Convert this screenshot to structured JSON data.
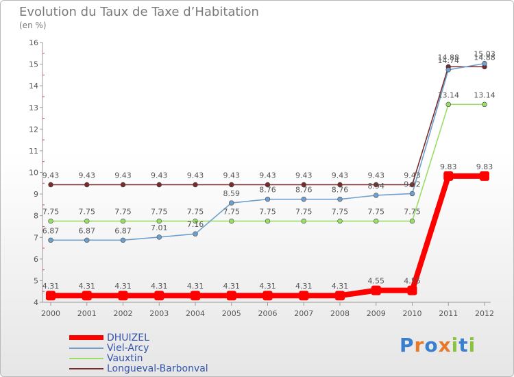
{
  "colors": {
    "DHUIZEL": "#ff0000",
    "Viel-Arcy": "#6fa0cc",
    "Vauxtin": "#99dd66",
    "Longueval-Barbonval": "#7a2a2a"
  },
  "chart_data": {
    "type": "line",
    "title": "Evolution du Taux de Taxe d’Habitation",
    "subtitle": "(en %)",
    "xlabel": "",
    "ylabel": "",
    "x": [
      "2000",
      "2001",
      "2002",
      "2003",
      "2004",
      "2005",
      "2006",
      "2007",
      "2008",
      "2009",
      "2010",
      "2011",
      "2012"
    ],
    "ylim": [
      4,
      16
    ],
    "yticks": [
      "4",
      "5",
      "6",
      "7",
      "8",
      "9",
      "10",
      "11",
      "12",
      "13",
      "14",
      "15",
      "16"
    ],
    "grid": false,
    "legend_position": "bottom-left",
    "series": [
      {
        "name": "DHUIZEL",
        "values": [
          4.31,
          4.31,
          4.31,
          4.31,
          4.31,
          4.31,
          4.31,
          4.31,
          4.31,
          4.55,
          4.55,
          9.83,
          9.83
        ],
        "labels": [
          "4.31",
          "4.31",
          "4.31",
          "4.31",
          "4.31",
          "4.31",
          "4.31",
          "4.31",
          "4.31",
          "4.55",
          "4.55",
          "9.83",
          "9.83"
        ]
      },
      {
        "name": "Viel-Arcy",
        "values": [
          6.87,
          6.87,
          6.87,
          7.01,
          7.16,
          8.59,
          8.76,
          8.76,
          8.76,
          8.94,
          9.02,
          14.74,
          15.03
        ],
        "labels": [
          "6.87",
          "6.87",
          "6.87",
          "7.01",
          "7.16",
          "8.59",
          "8.76",
          "8.76",
          "8.76",
          "8.94",
          "9.02",
          "14.74",
          "15.03"
        ]
      },
      {
        "name": "Vauxtin",
        "values": [
          7.75,
          7.75,
          7.75,
          7.75,
          7.75,
          7.75,
          7.75,
          7.75,
          7.75,
          7.75,
          7.75,
          13.14,
          13.14
        ],
        "labels": [
          "7.75",
          "7.75",
          "7.75",
          "7.75",
          "7.75",
          "7.75",
          "7.75",
          "7.75",
          "7.75",
          "7.75",
          "7.75",
          "13.14",
          "13.14"
        ]
      },
      {
        "name": "Longueval-Barbonval",
        "values": [
          9.43,
          9.43,
          9.43,
          9.43,
          9.43,
          9.43,
          9.43,
          9.43,
          9.43,
          9.43,
          9.43,
          14.88,
          14.88
        ],
        "labels": [
          "9.43",
          "9.43",
          "9.43",
          "9.43",
          "9.43",
          "9.43",
          "9.43",
          "9.43",
          "9.43",
          "9.43",
          "9.43",
          "14.88",
          "14.88"
        ]
      }
    ]
  },
  "legend": {
    "items": [
      "DHUIZEL",
      "Viel-Arcy",
      "Vauxtin",
      "Longueval-Barbonval"
    ]
  },
  "logo": {
    "text": "Proxiti",
    "letter_colors": [
      "#3a7fcf",
      "#e8792a",
      "#3a7fcf",
      "#e8792a",
      "#8ac43f",
      "#3a7fcf",
      "#8ac43f"
    ]
  }
}
